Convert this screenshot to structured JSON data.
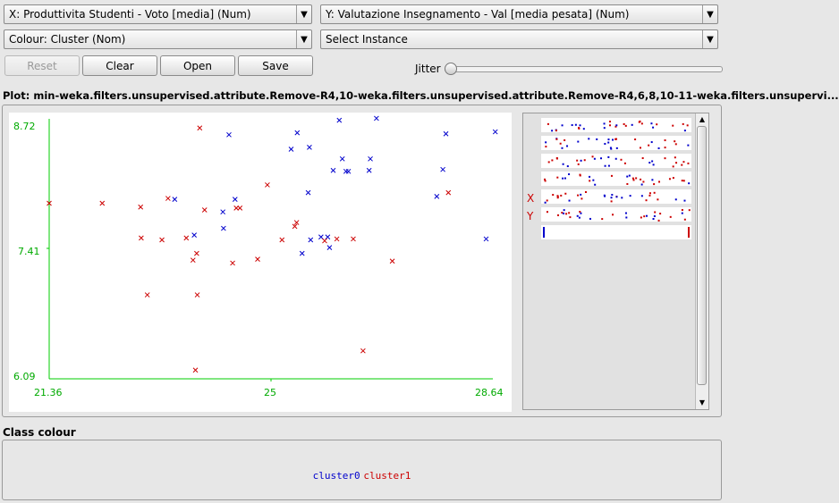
{
  "controls": {
    "x_axis": "X: Produttivita Studenti - Voto [media] (Num)",
    "y_axis": "Y: Valutazione Insegnamento - Val [media pesata] (Num)",
    "colour": "Colour: Cluster (Nom)",
    "instance": "Select Instance",
    "reset": "Reset",
    "clear": "Clear",
    "open": "Open",
    "save": "Save",
    "jitter": "Jitter",
    "jitter_level": 0
  },
  "plot_title": "Plot: min-weka.filters.unsupervised.attribute.Remove-R4,10-weka.filters.unsupervised.attribute.Remove-R4,6,8,10-11-weka.filters.unsupervi...",
  "chart_data": {
    "type": "scatter",
    "xlim": [
      21.36,
      28.64
    ],
    "ylim": [
      6.09,
      8.72
    ],
    "x_ticks": [
      "21.36",
      "25",
      "28.64"
    ],
    "y_ticks": [
      "8.72",
      "7.41",
      "6.09"
    ],
    "marker": "x",
    "series": [
      {
        "name": "cluster0",
        "color": "#0000cc",
        "points": [
          [
            23.42,
            7.95
          ],
          [
            23.74,
            7.58
          ],
          [
            24.21,
            7.82
          ],
          [
            24.22,
            7.65
          ],
          [
            24.31,
            8.62
          ],
          [
            24.41,
            7.95
          ],
          [
            25.33,
            8.47
          ],
          [
            25.43,
            8.64
          ],
          [
            25.51,
            7.39
          ],
          [
            25.61,
            8.02
          ],
          [
            25.63,
            8.49
          ],
          [
            25.65,
            7.53
          ],
          [
            25.82,
            7.56
          ],
          [
            25.93,
            7.56
          ],
          [
            25.96,
            7.45
          ],
          [
            26.02,
            8.25
          ],
          [
            26.12,
            8.77
          ],
          [
            26.17,
            8.37
          ],
          [
            26.23,
            8.24
          ],
          [
            26.27,
            8.24
          ],
          [
            26.61,
            8.25
          ],
          [
            26.63,
            8.37
          ],
          [
            26.73,
            8.79
          ],
          [
            27.72,
            7.98
          ],
          [
            27.82,
            8.26
          ],
          [
            27.87,
            8.63
          ],
          [
            28.53,
            7.54
          ],
          [
            28.68,
            8.65
          ]
        ]
      },
      {
        "name": "cluster1",
        "color": "#cc0000",
        "points": [
          [
            21.36,
            7.91
          ],
          [
            22.23,
            7.91
          ],
          [
            22.86,
            7.87
          ],
          [
            22.87,
            7.55
          ],
          [
            22.97,
            6.96
          ],
          [
            23.21,
            7.53
          ],
          [
            23.31,
            7.96
          ],
          [
            23.61,
            7.55
          ],
          [
            23.72,
            7.32
          ],
          [
            23.76,
            6.18
          ],
          [
            23.78,
            7.39
          ],
          [
            23.79,
            6.96
          ],
          [
            23.83,
            8.69
          ],
          [
            23.91,
            7.84
          ],
          [
            24.37,
            7.29
          ],
          [
            24.43,
            7.86
          ],
          [
            24.49,
            7.86
          ],
          [
            24.78,
            7.33
          ],
          [
            24.94,
            8.1
          ],
          [
            25.18,
            7.53
          ],
          [
            25.39,
            7.67
          ],
          [
            25.42,
            7.71
          ],
          [
            25.88,
            7.52
          ],
          [
            26.08,
            7.54
          ],
          [
            26.35,
            7.54
          ],
          [
            26.51,
            6.38
          ],
          [
            26.99,
            7.31
          ],
          [
            27.91,
            8.02
          ]
        ]
      }
    ]
  },
  "matrix": {
    "x_label": "X",
    "y_label": "Y"
  },
  "class_colour": {
    "title": "Class colour",
    "legend": [
      {
        "name": "cluster0",
        "color": "#0000cc"
      },
      {
        "name": "cluster1",
        "color": "#cc0000"
      }
    ]
  }
}
